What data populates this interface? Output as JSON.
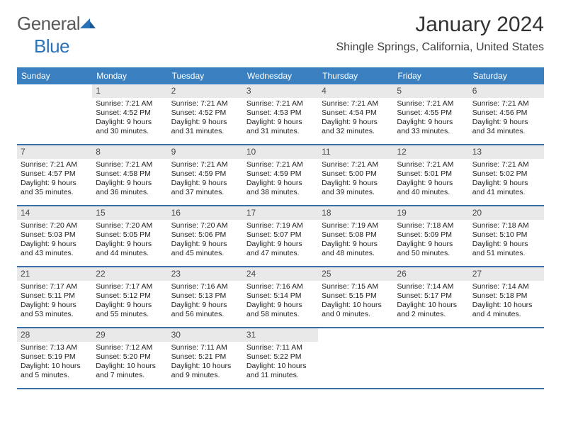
{
  "logo": {
    "general": "General",
    "blue": "Blue"
  },
  "title": "January 2024",
  "subtitle": "Shingle Springs, California, United States",
  "colors": {
    "header_bg": "#3a80c1",
    "header_text": "#ffffff",
    "daynum_bg": "#e9e9e9",
    "daynum_text": "#4a4a4a",
    "rule": "#3a6fa5",
    "logo_general": "#5a5a5a",
    "logo_blue": "#2b73b8",
    "title_color": "#333333",
    "subtitle_color": "#404040",
    "body_text": "#222222",
    "background": "#ffffff"
  },
  "fonts": {
    "title_size": 30,
    "subtitle_size": 16,
    "dayhead_size": 12,
    "daynum_size": 12,
    "cell_size": 10.5,
    "family": "Arial"
  },
  "layout": {
    "columns": 7,
    "rows": 5,
    "leading_blanks": 1,
    "trailing_blanks": 3
  },
  "day_headers": [
    "Sunday",
    "Monday",
    "Tuesday",
    "Wednesday",
    "Thursday",
    "Friday",
    "Saturday"
  ],
  "days": [
    {
      "n": "1",
      "sunrise": "Sunrise: 7:21 AM",
      "sunset": "Sunset: 4:52 PM",
      "dl1": "Daylight: 9 hours",
      "dl2": "and 30 minutes."
    },
    {
      "n": "2",
      "sunrise": "Sunrise: 7:21 AM",
      "sunset": "Sunset: 4:52 PM",
      "dl1": "Daylight: 9 hours",
      "dl2": "and 31 minutes."
    },
    {
      "n": "3",
      "sunrise": "Sunrise: 7:21 AM",
      "sunset": "Sunset: 4:53 PM",
      "dl1": "Daylight: 9 hours",
      "dl2": "and 31 minutes."
    },
    {
      "n": "4",
      "sunrise": "Sunrise: 7:21 AM",
      "sunset": "Sunset: 4:54 PM",
      "dl1": "Daylight: 9 hours",
      "dl2": "and 32 minutes."
    },
    {
      "n": "5",
      "sunrise": "Sunrise: 7:21 AM",
      "sunset": "Sunset: 4:55 PM",
      "dl1": "Daylight: 9 hours",
      "dl2": "and 33 minutes."
    },
    {
      "n": "6",
      "sunrise": "Sunrise: 7:21 AM",
      "sunset": "Sunset: 4:56 PM",
      "dl1": "Daylight: 9 hours",
      "dl2": "and 34 minutes."
    },
    {
      "n": "7",
      "sunrise": "Sunrise: 7:21 AM",
      "sunset": "Sunset: 4:57 PM",
      "dl1": "Daylight: 9 hours",
      "dl2": "and 35 minutes."
    },
    {
      "n": "8",
      "sunrise": "Sunrise: 7:21 AM",
      "sunset": "Sunset: 4:58 PM",
      "dl1": "Daylight: 9 hours",
      "dl2": "and 36 minutes."
    },
    {
      "n": "9",
      "sunrise": "Sunrise: 7:21 AM",
      "sunset": "Sunset: 4:59 PM",
      "dl1": "Daylight: 9 hours",
      "dl2": "and 37 minutes."
    },
    {
      "n": "10",
      "sunrise": "Sunrise: 7:21 AM",
      "sunset": "Sunset: 4:59 PM",
      "dl1": "Daylight: 9 hours",
      "dl2": "and 38 minutes."
    },
    {
      "n": "11",
      "sunrise": "Sunrise: 7:21 AM",
      "sunset": "Sunset: 5:00 PM",
      "dl1": "Daylight: 9 hours",
      "dl2": "and 39 minutes."
    },
    {
      "n": "12",
      "sunrise": "Sunrise: 7:21 AM",
      "sunset": "Sunset: 5:01 PM",
      "dl1": "Daylight: 9 hours",
      "dl2": "and 40 minutes."
    },
    {
      "n": "13",
      "sunrise": "Sunrise: 7:21 AM",
      "sunset": "Sunset: 5:02 PM",
      "dl1": "Daylight: 9 hours",
      "dl2": "and 41 minutes."
    },
    {
      "n": "14",
      "sunrise": "Sunrise: 7:20 AM",
      "sunset": "Sunset: 5:03 PM",
      "dl1": "Daylight: 9 hours",
      "dl2": "and 43 minutes."
    },
    {
      "n": "15",
      "sunrise": "Sunrise: 7:20 AM",
      "sunset": "Sunset: 5:05 PM",
      "dl1": "Daylight: 9 hours",
      "dl2": "and 44 minutes."
    },
    {
      "n": "16",
      "sunrise": "Sunrise: 7:20 AM",
      "sunset": "Sunset: 5:06 PM",
      "dl1": "Daylight: 9 hours",
      "dl2": "and 45 minutes."
    },
    {
      "n": "17",
      "sunrise": "Sunrise: 7:19 AM",
      "sunset": "Sunset: 5:07 PM",
      "dl1": "Daylight: 9 hours",
      "dl2": "and 47 minutes."
    },
    {
      "n": "18",
      "sunrise": "Sunrise: 7:19 AM",
      "sunset": "Sunset: 5:08 PM",
      "dl1": "Daylight: 9 hours",
      "dl2": "and 48 minutes."
    },
    {
      "n": "19",
      "sunrise": "Sunrise: 7:18 AM",
      "sunset": "Sunset: 5:09 PM",
      "dl1": "Daylight: 9 hours",
      "dl2": "and 50 minutes."
    },
    {
      "n": "20",
      "sunrise": "Sunrise: 7:18 AM",
      "sunset": "Sunset: 5:10 PM",
      "dl1": "Daylight: 9 hours",
      "dl2": "and 51 minutes."
    },
    {
      "n": "21",
      "sunrise": "Sunrise: 7:17 AM",
      "sunset": "Sunset: 5:11 PM",
      "dl1": "Daylight: 9 hours",
      "dl2": "and 53 minutes."
    },
    {
      "n": "22",
      "sunrise": "Sunrise: 7:17 AM",
      "sunset": "Sunset: 5:12 PM",
      "dl1": "Daylight: 9 hours",
      "dl2": "and 55 minutes."
    },
    {
      "n": "23",
      "sunrise": "Sunrise: 7:16 AM",
      "sunset": "Sunset: 5:13 PM",
      "dl1": "Daylight: 9 hours",
      "dl2": "and 56 minutes."
    },
    {
      "n": "24",
      "sunrise": "Sunrise: 7:16 AM",
      "sunset": "Sunset: 5:14 PM",
      "dl1": "Daylight: 9 hours",
      "dl2": "and 58 minutes."
    },
    {
      "n": "25",
      "sunrise": "Sunrise: 7:15 AM",
      "sunset": "Sunset: 5:15 PM",
      "dl1": "Daylight: 10 hours",
      "dl2": "and 0 minutes."
    },
    {
      "n": "26",
      "sunrise": "Sunrise: 7:14 AM",
      "sunset": "Sunset: 5:17 PM",
      "dl1": "Daylight: 10 hours",
      "dl2": "and 2 minutes."
    },
    {
      "n": "27",
      "sunrise": "Sunrise: 7:14 AM",
      "sunset": "Sunset: 5:18 PM",
      "dl1": "Daylight: 10 hours",
      "dl2": "and 4 minutes."
    },
    {
      "n": "28",
      "sunrise": "Sunrise: 7:13 AM",
      "sunset": "Sunset: 5:19 PM",
      "dl1": "Daylight: 10 hours",
      "dl2": "and 5 minutes."
    },
    {
      "n": "29",
      "sunrise": "Sunrise: 7:12 AM",
      "sunset": "Sunset: 5:20 PM",
      "dl1": "Daylight: 10 hours",
      "dl2": "and 7 minutes."
    },
    {
      "n": "30",
      "sunrise": "Sunrise: 7:11 AM",
      "sunset": "Sunset: 5:21 PM",
      "dl1": "Daylight: 10 hours",
      "dl2": "and 9 minutes."
    },
    {
      "n": "31",
      "sunrise": "Sunrise: 7:11 AM",
      "sunset": "Sunset: 5:22 PM",
      "dl1": "Daylight: 10 hours",
      "dl2": "and 11 minutes."
    }
  ]
}
